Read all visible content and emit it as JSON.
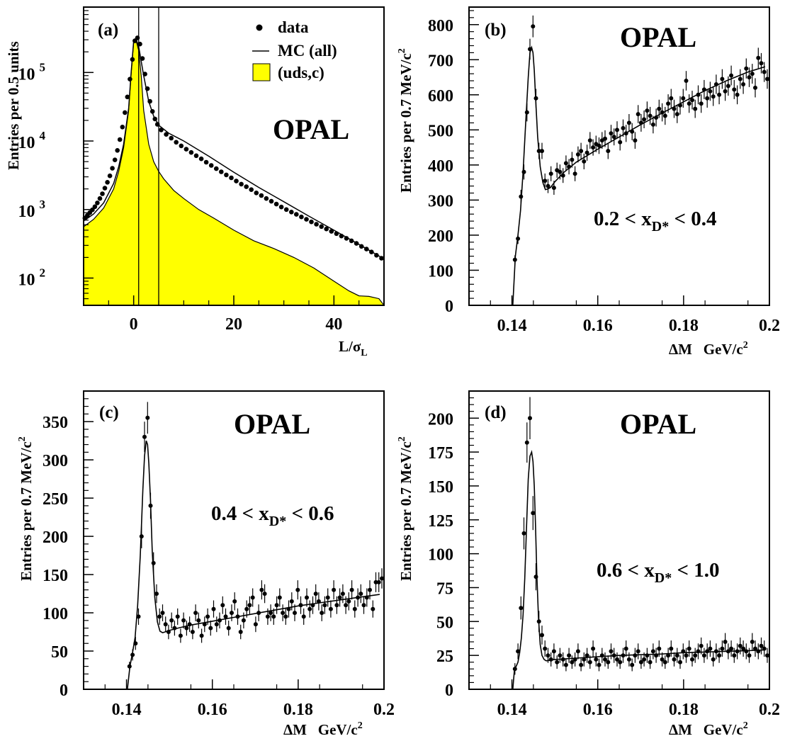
{
  "colors": {
    "fill_uds_c": "#ffff00",
    "ink": "#000000"
  },
  "chart_data": [
    {
      "type": "area",
      "panel_label": "(a)",
      "experiment": "OPAL",
      "y_title": "Entries per 0.5 units",
      "x_title_main": "L/σ",
      "x_title_sub": "L",
      "y_scale": "log",
      "xlim": [
        -10,
        50
      ],
      "ylim": [
        40,
        900000
      ],
      "x_ticks": [
        "0",
        "20",
        "40"
      ],
      "y_ticks": [
        {
          "base": "10",
          "exp": "2"
        },
        {
          "base": "10",
          "exp": "3"
        },
        {
          "base": "10",
          "exp": "4"
        },
        {
          "base": "10",
          "exp": "5"
        }
      ],
      "vertical_lines": [
        1,
        5
      ],
      "legend": {
        "data": "data",
        "mc": "MC (all)",
        "uds": "(uds,c)",
        "position": "top-right"
      },
      "series": [
        {
          "name": "data",
          "kind": "points",
          "x": [
            -9.75,
            -9.25,
            -8.75,
            -8.25,
            -7.75,
            -7.25,
            -6.75,
            -6.25,
            -5.75,
            -5.25,
            -4.75,
            -4.25,
            -3.75,
            -3.25,
            -2.75,
            -2.25,
            -1.75,
            -1.25,
            -0.75,
            -0.25,
            0.25,
            0.75,
            1.25,
            1.75,
            2.25,
            2.75,
            3.25,
            3.75,
            4.25,
            4.75,
            5.5,
            6.5,
            7.5,
            8.5,
            9.5,
            10.5,
            11.5,
            12.5,
            13.5,
            14.5,
            15.5,
            16.5,
            17.5,
            18.5,
            19.5,
            20.5,
            21.5,
            22.5,
            23.5,
            24.5,
            25.5,
            26.5,
            27.5,
            28.5,
            29.5,
            30.5,
            31.5,
            32.5,
            33.5,
            34.5,
            35.5,
            36.5,
            37.5,
            38.5,
            39.5,
            40.5,
            41.5,
            42.5,
            43.5,
            44.5,
            45.5,
            46.5,
            47.5,
            48.5,
            49.5
          ],
          "y": [
            750,
            820,
            900,
            990,
            1100,
            1250,
            1450,
            1700,
            2050,
            2500,
            3100,
            4000,
            5300,
            7300,
            10500,
            16000,
            26000,
            44000,
            80000,
            155000,
            290000,
            320000,
            260000,
            160000,
            95000,
            58000,
            38000,
            27000,
            21000,
            17500,
            14500,
            12500,
            11000,
            9600,
            8500,
            7600,
            6800,
            6100,
            5500,
            4900,
            4400,
            3950,
            3550,
            3200,
            2900,
            2600,
            2350,
            2150,
            1950,
            1750,
            1600,
            1450,
            1320,
            1200,
            1090,
            1000,
            920,
            850,
            780,
            720,
            660,
            610,
            565,
            520,
            480,
            445,
            410,
            380,
            350,
            320,
            290,
            265,
            240,
            215,
            195
          ]
        },
        {
          "name": "MC (all)",
          "kind": "line",
          "x": [
            -10,
            -8,
            -6,
            -4,
            -3,
            -2,
            -1,
            -0.5,
            0,
            0.5,
            1,
            2,
            3,
            4,
            5,
            7,
            10,
            15,
            20,
            25,
            30,
            35,
            40,
            45,
            50
          ],
          "y": [
            680,
            860,
            1250,
            2400,
            4200,
            9000,
            30000,
            100000,
            290000,
            305000,
            240000,
            90000,
            38000,
            23000,
            17000,
            13000,
            10000,
            6000,
            3500,
            2100,
            1300,
            800,
            500,
            310,
            190
          ]
        },
        {
          "name": "(uds,c)",
          "kind": "area",
          "x": [
            -10,
            -8,
            -6,
            -4,
            -3,
            -2,
            -1,
            -0.5,
            0,
            0.5,
            1,
            1.5,
            2,
            3,
            4,
            5,
            6,
            8,
            10,
            13,
            16,
            20,
            24,
            28,
            32,
            36,
            40,
            43,
            45,
            47,
            49,
            50
          ],
          "y": [
            560,
            720,
            1050,
            2000,
            3600,
            8000,
            28000,
            95000,
            280000,
            290000,
            210000,
            90000,
            28000,
            9000,
            5000,
            3600,
            2800,
            1900,
            1450,
            1000,
            750,
            500,
            350,
            270,
            200,
            140,
            90,
            65,
            55,
            54,
            50,
            40
          ]
        }
      ]
    },
    {
      "type": "scatter",
      "panel_label": "(b)",
      "experiment": "OPAL",
      "y_title": "Entries per 0.7 MeV/c",
      "y_title_sup": "2",
      "x_title": "ΔM   GeV/c",
      "x_title_sup": "2",
      "xlim": [
        0.13,
        0.2
      ],
      "ylim": [
        0,
        850
      ],
      "x_ticks": [
        "0.14",
        "0.16",
        "0.18",
        "0.2"
      ],
      "y_ticks": [
        "0",
        "100",
        "200",
        "300",
        "400",
        "500",
        "600",
        "700",
        "800"
      ],
      "range_pre": "0.2 < x",
      "range_sub": "D*",
      "range_post": " < 0.4",
      "points": {
        "x": [
          0.1407,
          0.1414,
          0.1421,
          0.1428,
          0.1435,
          0.1442,
          0.1449,
          0.1456,
          0.1463,
          0.147,
          0.1477,
          0.1484,
          0.1491,
          0.1498,
          0.1505,
          0.1512,
          0.1519,
          0.1526,
          0.1533,
          0.154,
          0.1547,
          0.1554,
          0.1561,
          0.1568,
          0.1575,
          0.1582,
          0.1589,
          0.1596,
          0.1603,
          0.161,
          0.1617,
          0.1624,
          0.1631,
          0.1638,
          0.1645,
          0.1652,
          0.1659,
          0.1666,
          0.1673,
          0.168,
          0.1687,
          0.1694,
          0.1701,
          0.1708,
          0.1715,
          0.1722,
          0.1729,
          0.1736,
          0.1743,
          0.175,
          0.1757,
          0.1764,
          0.1771,
          0.1778,
          0.1785,
          0.1792,
          0.1799,
          0.1806,
          0.1813,
          0.182,
          0.1827,
          0.1834,
          0.1841,
          0.1848,
          0.1855,
          0.1862,
          0.1869,
          0.1876,
          0.1883,
          0.189,
          0.1897,
          0.1904,
          0.1911,
          0.1918,
          0.1925,
          0.1932,
          0.1939,
          0.1946,
          0.1953,
          0.196,
          0.1967,
          0.1974,
          0.1981,
          0.1988,
          0.1995
        ],
        "y": [
          130,
          190,
          310,
          380,
          550,
          730,
          795,
          590,
          440,
          440,
          355,
          340,
          375,
          335,
          385,
          380,
          370,
          405,
          395,
          415,
          375,
          430,
          440,
          410,
          435,
          470,
          450,
          460,
          455,
          470,
          475,
          440,
          490,
          480,
          500,
          465,
          505,
          490,
          520,
          495,
          470,
          545,
          520,
          530,
          555,
          540,
          515,
          535,
          560,
          550,
          540,
          575,
          590,
          560,
          545,
          570,
          590,
          640,
          575,
          585,
          560,
          600,
          575,
          615,
          590,
          610,
          595,
          630,
          600,
          645,
          610,
          625,
          655,
          615,
          600,
          645,
          630,
          675,
          650,
          660,
          620,
          705,
          690,
          665,
          645
        ]
      },
      "fit": {
        "x": [
          0.1402,
          0.1408,
          0.1414,
          0.142,
          0.1426,
          0.1432,
          0.1438,
          0.1442,
          0.1446,
          0.1449,
          0.1452,
          0.1456,
          0.146,
          0.1466,
          0.1472,
          0.1478,
          0.1484,
          0.149,
          0.15,
          0.152,
          0.155,
          0.16,
          0.165,
          0.17,
          0.175,
          0.18,
          0.185,
          0.19,
          0.195,
          0.199
        ],
        "y": [
          0,
          140,
          200,
          270,
          380,
          520,
          650,
          720,
          735,
          720,
          670,
          570,
          480,
          395,
          350,
          330,
          332,
          336,
          352,
          378,
          408,
          445,
          480,
          515,
          548,
          580,
          612,
          640,
          665,
          680
        ]
      }
    },
    {
      "type": "scatter",
      "panel_label": "(c)",
      "experiment": "OPAL",
      "y_title": "Entries per 0.7 MeV/c",
      "y_title_sup": "2",
      "x_title": "ΔM   GeV/c",
      "x_title_sup": "2",
      "xlim": [
        0.13,
        0.2
      ],
      "ylim": [
        0,
        390
      ],
      "x_ticks": [
        "0.14",
        "0.16",
        "0.18",
        "0.2"
      ],
      "y_ticks": [
        "0",
        "50",
        "100",
        "150",
        "200",
        "250",
        "300",
        "350"
      ],
      "range_pre": "0.4 < x",
      "range_sub": "D*",
      "range_post": " < 0.6",
      "points": {
        "x": [
          0.1407,
          0.1414,
          0.1421,
          0.1428,
          0.1435,
          0.1442,
          0.1449,
          0.1456,
          0.1463,
          0.147,
          0.1477,
          0.1484,
          0.1491,
          0.1498,
          0.1505,
          0.1512,
          0.1519,
          0.1526,
          0.1533,
          0.154,
          0.1547,
          0.1554,
          0.1561,
          0.1568,
          0.1575,
          0.1582,
          0.1589,
          0.1596,
          0.1603,
          0.161,
          0.1617,
          0.1624,
          0.1631,
          0.1638,
          0.1645,
          0.1652,
          0.1659,
          0.1666,
          0.1673,
          0.168,
          0.1687,
          0.1694,
          0.1701,
          0.1708,
          0.1715,
          0.1722,
          0.1729,
          0.1736,
          0.1743,
          0.175,
          0.1757,
          0.1764,
          0.1771,
          0.1778,
          0.1785,
          0.1792,
          0.1799,
          0.1806,
          0.1813,
          0.182,
          0.1827,
          0.1834,
          0.1841,
          0.1848,
          0.1855,
          0.1862,
          0.1869,
          0.1876,
          0.1883,
          0.189,
          0.1897,
          0.1904,
          0.1911,
          0.1918,
          0.1925,
          0.1932,
          0.1939,
          0.1946,
          0.1953,
          0.196,
          0.1967,
          0.1974,
          0.1981,
          0.1988,
          0.1995
        ],
        "y": [
          30,
          45,
          60,
          95,
          200,
          330,
          355,
          240,
          165,
          125,
          95,
          100,
          85,
          75,
          90,
          80,
          95,
          70,
          90,
          80,
          85,
          75,
          100,
          90,
          70,
          85,
          95,
          80,
          105,
          85,
          90,
          110,
          95,
          80,
          100,
          115,
          95,
          75,
          90,
          105,
          110,
          120,
          85,
          100,
          130,
          125,
          95,
          100,
          95,
          110,
          120,
          100,
          95,
          105,
          115,
          100,
          130,
          110,
          95,
          120,
          105,
          110,
          125,
          115,
          100,
          110,
          120,
          105,
          130,
          110,
          120,
          125,
          110,
          115,
          130,
          105,
          120,
          125,
          110,
          120,
          130,
          105,
          140,
          140,
          145
        ]
      },
      "fit": {
        "x": [
          0.1402,
          0.1408,
          0.1414,
          0.142,
          0.1426,
          0.1432,
          0.1438,
          0.1442,
          0.1446,
          0.1449,
          0.1452,
          0.1456,
          0.146,
          0.1466,
          0.1472,
          0.1478,
          0.1484,
          0.149,
          0.15,
          0.152,
          0.155,
          0.16,
          0.165,
          0.17,
          0.175,
          0.18,
          0.185,
          0.19,
          0.195,
          0.199
        ],
        "y": [
          0,
          30,
          48,
          68,
          110,
          175,
          260,
          305,
          325,
          320,
          295,
          245,
          180,
          120,
          88,
          76,
          74,
          75,
          77,
          80,
          84,
          89,
          94,
          99,
          104,
          109,
          113,
          117,
          121,
          124
        ]
      }
    },
    {
      "type": "scatter",
      "panel_label": "(d)",
      "experiment": "OPAL",
      "y_title": "Entries per 0.7 MeV/c",
      "y_title_sup": "2",
      "x_title": "ΔM   GeV/c",
      "x_title_sup": "2",
      "xlim": [
        0.13,
        0.2
      ],
      "ylim": [
        0,
        220
      ],
      "x_ticks": [
        "0.14",
        "0.16",
        "0.18",
        "0.2"
      ],
      "y_ticks": [
        "0",
        "25",
        "50",
        "75",
        "100",
        "125",
        "150",
        "175",
        "200"
      ],
      "range_pre": "0.6 < x",
      "range_sub": "D*",
      "range_post": " < 1.0",
      "points": {
        "x": [
          0.1407,
          0.1414,
          0.1421,
          0.1428,
          0.1435,
          0.1442,
          0.1449,
          0.1456,
          0.1463,
          0.147,
          0.1477,
          0.1484,
          0.1491,
          0.1498,
          0.1505,
          0.1512,
          0.1519,
          0.1526,
          0.1533,
          0.154,
          0.1547,
          0.1554,
          0.1561,
          0.1568,
          0.1575,
          0.1582,
          0.1589,
          0.1596,
          0.1603,
          0.161,
          0.1617,
          0.1624,
          0.1631,
          0.1638,
          0.1645,
          0.1652,
          0.1659,
          0.1666,
          0.1673,
          0.168,
          0.1687,
          0.1694,
          0.1701,
          0.1708,
          0.1715,
          0.1722,
          0.1729,
          0.1736,
          0.1743,
          0.175,
          0.1757,
          0.1764,
          0.1771,
          0.1778,
          0.1785,
          0.1792,
          0.1799,
          0.1806,
          0.1813,
          0.182,
          0.1827,
          0.1834,
          0.1841,
          0.1848,
          0.1855,
          0.1862,
          0.1869,
          0.1876,
          0.1883,
          0.189,
          0.1897,
          0.1904,
          0.1911,
          0.1918,
          0.1925,
          0.1932,
          0.1939,
          0.1946,
          0.1953,
          0.196,
          0.1967,
          0.1974,
          0.1981,
          0.1988,
          0.1995
        ],
        "y": [
          15,
          28,
          60,
          115,
          182,
          200,
          130,
          83,
          50,
          40,
          30,
          25,
          22,
          28,
          20,
          25,
          22,
          18,
          25,
          20,
          22,
          28,
          18,
          22,
          25,
          20,
          30,
          22,
          18,
          25,
          22,
          20,
          28,
          25,
          22,
          20,
          25,
          30,
          22,
          18,
          25,
          28,
          20,
          22,
          25,
          20,
          28,
          25,
          30,
          22,
          20,
          25,
          30,
          22,
          25,
          20,
          28,
          25,
          30,
          22,
          25,
          28,
          32,
          25,
          28,
          30,
          22,
          28,
          25,
          30,
          35,
          28,
          30,
          25,
          28,
          32,
          30,
          28,
          25,
          35,
          30,
          28,
          32,
          30,
          25
        ]
      },
      "fit": {
        "x": [
          0.1402,
          0.1406,
          0.141,
          0.1414,
          0.1418,
          0.1422,
          0.1426,
          0.143,
          0.1434,
          0.1438,
          0.1442,
          0.1446,
          0.1449,
          0.1452,
          0.1455,
          0.1458,
          0.1462,
          0.1466,
          0.147,
          0.1475,
          0.148,
          0.149,
          0.15,
          0.155,
          0.16,
          0.165,
          0.17,
          0.175,
          0.18,
          0.185,
          0.19,
          0.195,
          0.199
        ],
        "y": [
          0,
          15,
          17,
          20,
          27,
          38,
          55,
          82,
          120,
          155,
          172,
          175,
          168,
          150,
          120,
          85,
          52,
          33,
          25,
          22,
          21,
          21.5,
          22,
          23,
          24,
          25,
          25.5,
          26,
          27,
          27.5,
          28,
          28.5,
          29
        ]
      }
    }
  ]
}
